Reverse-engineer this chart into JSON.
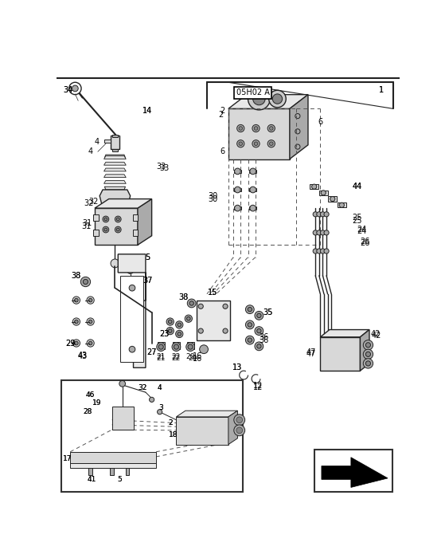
{
  "bg_color": "#ffffff",
  "line_color": "#222222",
  "fig_width": 5.59,
  "fig_height": 7.0,
  "dpi": 100
}
